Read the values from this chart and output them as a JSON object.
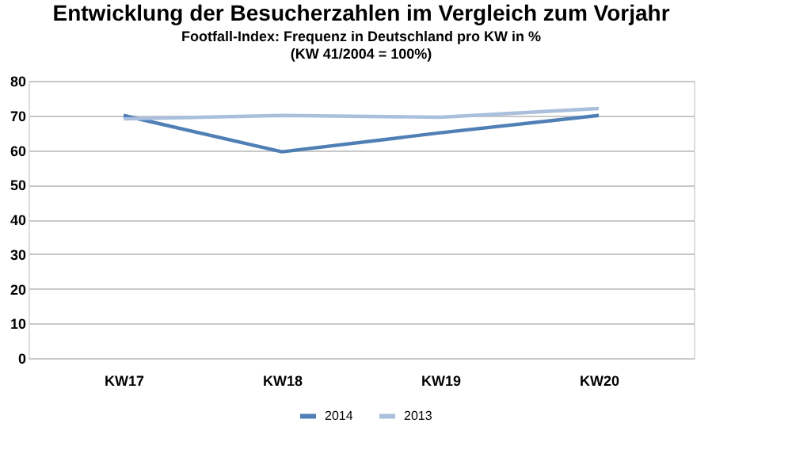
{
  "chart_data": {
    "type": "line",
    "title": "Entwicklung der Besucherzahlen im Vergleich zum Vorjahr",
    "subtitle": [
      "Footfall-Index: Frequenz in Deutschland pro KW in %",
      "(KW 41/2004 = 100%)"
    ],
    "categories": [
      "KW17",
      "KW18",
      "KW19",
      "KW20"
    ],
    "series": [
      {
        "name": "2014",
        "color": "#4f7fb5",
        "values": [
          70,
          59.5,
          65,
          70
        ]
      },
      {
        "name": "2013",
        "color": "#a9bfdc",
        "values": [
          69,
          70,
          69.5,
          72
        ]
      }
    ],
    "ylim": [
      0,
      80
    ],
    "yticks": [
      0,
      10,
      20,
      30,
      40,
      50,
      60,
      70,
      80
    ],
    "grid": "y",
    "legend": "bottom",
    "marker": "none",
    "line_style": "solid"
  }
}
